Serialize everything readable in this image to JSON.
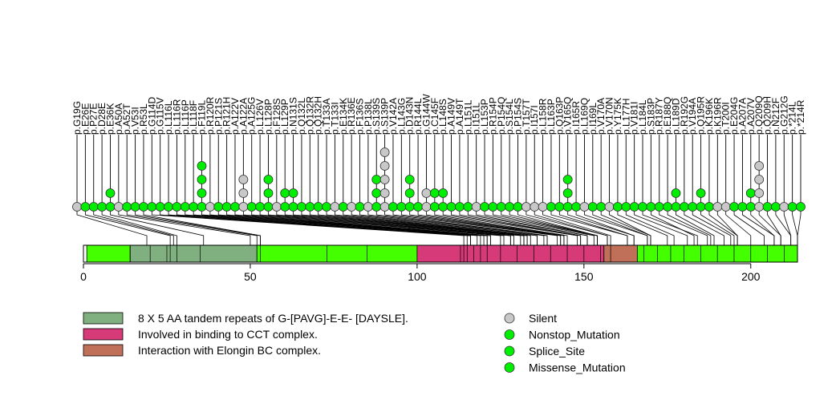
{
  "chart_data": {
    "type": "lollipop",
    "x_axis": {
      "min": 0,
      "max": 214,
      "ticks": [
        0,
        50,
        100,
        150,
        200
      ]
    },
    "regions": [
      {
        "start": 1,
        "end": 14,
        "type": "base"
      },
      {
        "start": 14,
        "end": 52,
        "type": "tandem"
      },
      {
        "start": 52,
        "end": 100,
        "type": "base"
      },
      {
        "start": 100,
        "end": 156,
        "type": "cct"
      },
      {
        "start": 156,
        "end": 166,
        "type": "elongin"
      },
      {
        "start": 166,
        "end": 214,
        "type": "base"
      }
    ],
    "region_dividers": [
      14,
      20,
      25,
      26,
      28,
      35,
      53,
      73,
      85,
      113,
      114,
      115,
      117,
      119,
      121,
      125,
      130,
      135,
      140,
      145,
      150,
      155,
      158,
      168,
      172,
      176,
      180,
      185,
      190,
      195,
      200,
      205,
      210
    ],
    "mutations": [
      {
        "label": "p.G19G",
        "pos": 19,
        "count": 1,
        "type": "Silent"
      },
      {
        "label": "p.E26E",
        "pos": 26,
        "count": 1,
        "type": "Missense_Mutation"
      },
      {
        "label": "p.P27E",
        "pos": 27,
        "count": 1,
        "type": "Missense_Mutation"
      },
      {
        "label": "p.D28E",
        "pos": 28,
        "count": 1,
        "type": "Missense_Mutation"
      },
      {
        "label": "p.E36K",
        "pos": 36,
        "count": 2,
        "type": "Missense_Mutation"
      },
      {
        "label": "p.A50A",
        "pos": 50,
        "count": 1,
        "type": "Silent"
      },
      {
        "label": "p.A52T",
        "pos": 52,
        "count": 1,
        "type": "Missense_Mutation"
      },
      {
        "label": "p.V53I",
        "pos": 53,
        "count": 1,
        "type": "Missense_Mutation"
      },
      {
        "label": "p.R53L",
        "pos": 53,
        "count": 1,
        "type": "Missense_Mutation"
      },
      {
        "label": "p.G114D",
        "pos": 114,
        "count": 1,
        "type": "Missense_Mutation"
      },
      {
        "label": "p.G115V",
        "pos": 115,
        "count": 1,
        "type": "Missense_Mutation"
      },
      {
        "label": "p.L116L",
        "pos": 116,
        "count": 1,
        "type": "Missense_Mutation"
      },
      {
        "label": "p.L116R",
        "pos": 116,
        "count": 1,
        "type": "Missense_Mutation"
      },
      {
        "label": "p.L116P",
        "pos": 116,
        "count": 1,
        "type": "Missense_Mutation"
      },
      {
        "label": "p.L118F",
        "pos": 118,
        "count": 1,
        "type": "Missense_Mutation"
      },
      {
        "label": "p.F119L",
        "pos": 119,
        "count": 4,
        "type": "Missense_Mutation"
      },
      {
        "label": "p.R120R",
        "pos": 120,
        "count": 1,
        "type": "Silent"
      },
      {
        "label": "p.P121S",
        "pos": 121,
        "count": 1,
        "type": "Missense_Mutation"
      },
      {
        "label": "p.R121H",
        "pos": 121,
        "count": 1,
        "type": "Missense_Mutation"
      },
      {
        "label": "p.A122V",
        "pos": 122,
        "count": 1,
        "type": "Missense_Mutation"
      },
      {
        "label": "p.A122A",
        "pos": 122,
        "count": 3,
        "type": "Silent"
      },
      {
        "label": "p.A125G",
        "pos": 125,
        "count": 1,
        "type": "Missense_Mutation"
      },
      {
        "label": "p.L126V",
        "pos": 126,
        "count": 1,
        "type": "Missense_Mutation"
      },
      {
        "label": "p.L128P",
        "pos": 128,
        "count": 3,
        "type": "Missense_Mutation"
      },
      {
        "label": "p.F128S",
        "pos": 128,
        "count": 1,
        "type": "Silent"
      },
      {
        "label": "p.L129P",
        "pos": 129,
        "count": 2,
        "type": "Missense_Mutation"
      },
      {
        "label": "p.N131S",
        "pos": 131,
        "count": 2,
        "type": "Missense_Mutation"
      },
      {
        "label": "p.Q132L",
        "pos": 132,
        "count": 1,
        "type": "Missense_Mutation"
      },
      {
        "label": "p.Q132R",
        "pos": 132,
        "count": 1,
        "type": "Missense_Mutation"
      },
      {
        "label": "p.Q132H",
        "pos": 132,
        "count": 1,
        "type": "Missense_Mutation"
      },
      {
        "label": "p.T133A",
        "pos": 133,
        "count": 1,
        "type": "Missense_Mutation"
      },
      {
        "label": "p.T133I",
        "pos": 133,
        "count": 1,
        "type": "Silent"
      },
      {
        "label": "p.E134K",
        "pos": 134,
        "count": 1,
        "type": "Missense_Mutation"
      },
      {
        "label": "p.R136E",
        "pos": 136,
        "count": 1,
        "type": "Silent"
      },
      {
        "label": "p.F136S",
        "pos": 136,
        "count": 1,
        "type": "Missense_Mutation"
      },
      {
        "label": "p.P138L",
        "pos": 138,
        "count": 1,
        "type": "Silent"
      },
      {
        "label": "p.S139S",
        "pos": 139,
        "count": 3,
        "type": "Missense_Mutation"
      },
      {
        "label": "p.S139P",
        "pos": 139,
        "count": 5,
        "type": "Silent"
      },
      {
        "label": "p.V142A",
        "pos": 142,
        "count": 1,
        "type": "Missense_Mutation"
      },
      {
        "label": "p.L143G",
        "pos": 143,
        "count": 1,
        "type": "Missense_Mutation"
      },
      {
        "label": "p.D143N",
        "pos": 143,
        "count": 3,
        "type": "Missense_Mutation"
      },
      {
        "label": "p.R144L",
        "pos": 144,
        "count": 1,
        "type": "Missense_Mutation"
      },
      {
        "label": "p.G144W",
        "pos": 144,
        "count": 2,
        "type": "Silent"
      },
      {
        "label": "p.C145F",
        "pos": 145,
        "count": 2,
        "type": "Missense_Mutation"
      },
      {
        "label": "p.L148S",
        "pos": 148,
        "count": 2,
        "type": "Missense_Mutation"
      },
      {
        "label": "p.A149V",
        "pos": 149,
        "count": 1,
        "type": "Missense_Mutation"
      },
      {
        "label": "p.A149T",
        "pos": 149,
        "count": 1,
        "type": "Missense_Mutation"
      },
      {
        "label": "p.L151L",
        "pos": 151,
        "count": 1,
        "type": "Missense_Mutation"
      },
      {
        "label": "p.I151L",
        "pos": 151,
        "count": 1,
        "type": "Silent"
      },
      {
        "label": "p.L153P",
        "pos": 153,
        "count": 1,
        "type": "Missense_Mutation"
      },
      {
        "label": "p.R154P",
        "pos": 154,
        "count": 1,
        "type": "Missense_Mutation"
      },
      {
        "label": "p.P154Q",
        "pos": 154,
        "count": 1,
        "type": "Missense_Mutation"
      },
      {
        "label": "p.S154L",
        "pos": 154,
        "count": 1,
        "type": "Missense_Mutation"
      },
      {
        "label": "p.P154S",
        "pos": 154,
        "count": 1,
        "type": "Missense_Mutation"
      },
      {
        "label": "p.T157T",
        "pos": 157,
        "count": 1,
        "type": "Silent"
      },
      {
        "label": "p.I157I",
        "pos": 157,
        "count": 1,
        "type": "Silent"
      },
      {
        "label": "p.L158R",
        "pos": 158,
        "count": 1,
        "type": "Silent"
      },
      {
        "label": "p.L163P",
        "pos": 163,
        "count": 1,
        "type": "Missense_Mutation"
      },
      {
        "label": "p.Q163P",
        "pos": 163,
        "count": 1,
        "type": "Missense_Mutation"
      },
      {
        "label": "p.V165Q",
        "pos": 165,
        "count": 3,
        "type": "Missense_Mutation"
      },
      {
        "label": "p.I165R",
        "pos": 165,
        "count": 1,
        "type": "Missense_Mutation"
      },
      {
        "label": "p.L169Q",
        "pos": 169,
        "count": 1,
        "type": "Silent"
      },
      {
        "label": "p.I169L",
        "pos": 169,
        "count": 1,
        "type": "Missense_Mutation"
      },
      {
        "label": "p.V170A",
        "pos": 170,
        "count": 1,
        "type": "Missense_Mutation"
      },
      {
        "label": "p.V170N",
        "pos": 170,
        "count": 1,
        "type": "Silent"
      },
      {
        "label": "p.Y175K",
        "pos": 175,
        "count": 1,
        "type": "Missense_Mutation"
      },
      {
        "label": "p.L177H",
        "pos": 177,
        "count": 1,
        "type": "Missense_Mutation"
      },
      {
        "label": "p.V181I",
        "pos": 181,
        "count": 1,
        "type": "Missense_Mutation"
      },
      {
        "label": "p.L184L",
        "pos": 184,
        "count": 1,
        "type": "Missense_Mutation"
      },
      {
        "label": "p.S183P",
        "pos": 183,
        "count": 1,
        "type": "Missense_Mutation"
      },
      {
        "label": "p.R187Y",
        "pos": 187,
        "count": 1,
        "type": "Missense_Mutation"
      },
      {
        "label": "p.E188Q",
        "pos": 188,
        "count": 1,
        "type": "Missense_Mutation"
      },
      {
        "label": "p.L189D",
        "pos": 189,
        "count": 2,
        "type": "Missense_Mutation"
      },
      {
        "label": "p.R192G",
        "pos": 192,
        "count": 1,
        "type": "Missense_Mutation"
      },
      {
        "label": "p.V194A",
        "pos": 194,
        "count": 1,
        "type": "Missense_Mutation"
      },
      {
        "label": "p.Q195R",
        "pos": 195,
        "count": 2,
        "type": "Missense_Mutation"
      },
      {
        "label": "p.K196K",
        "pos": 196,
        "count": 1,
        "type": "Missense_Mutation"
      },
      {
        "label": "p.K196R",
        "pos": 196,
        "count": 1,
        "type": "Silent"
      },
      {
        "label": "p.T200I",
        "pos": 200,
        "count": 1,
        "type": "Silent"
      },
      {
        "label": "p.E204G",
        "pos": 204,
        "count": 1,
        "type": "Missense_Mutation"
      },
      {
        "label": "p.A207A",
        "pos": 207,
        "count": 1,
        "type": "Missense_Mutation"
      },
      {
        "label": "p.A207V",
        "pos": 207,
        "count": 2,
        "type": "Missense_Mutation"
      },
      {
        "label": "p.Q209Q",
        "pos": 209,
        "count": 4,
        "type": "Silent"
      },
      {
        "label": "p.Q209H",
        "pos": 209,
        "count": 1,
        "type": "Missense_Mutation"
      },
      {
        "label": "p.N212F",
        "pos": 212,
        "count": 1,
        "type": "Missense_Mutation"
      },
      {
        "label": "p.G212G",
        "pos": 212,
        "count": 1,
        "type": "Silent"
      },
      {
        "label": "p.*214L",
        "pos": 214,
        "count": 1,
        "type": "Missense_Mutation"
      },
      {
        "label": "p.*214R",
        "pos": 214,
        "count": 1,
        "type": "Missense_Mutation"
      }
    ],
    "legend": {
      "domains": [
        {
          "label": "8 X 5 AA tandem repeats of G-[PAVG]-E-E- [DAYSLE].",
          "color": "#80B080"
        },
        {
          "label": "Involved in binding to CCT complex.",
          "color": "#D63A78"
        },
        {
          "label": "Interaction with Elongin BC complex.",
          "color": "#C07058"
        }
      ],
      "mutation_types": [
        {
          "label": "Silent",
          "color": "#C8C8C8"
        },
        {
          "label": "Nonstop_Mutation",
          "color": "#00EE00"
        },
        {
          "label": "Splice_Site",
          "color": "#00EE00"
        },
        {
          "label": "Missense_Mutation",
          "color": "#00EE00"
        }
      ]
    },
    "colors": {
      "base": "#44FF00",
      "tandem": "#80B080",
      "cct": "#D63A78",
      "elongin": "#C07058",
      "silent": "#C8C8C8",
      "mutation": "#00EE00"
    }
  }
}
